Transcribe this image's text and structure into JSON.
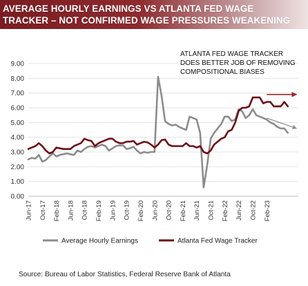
{
  "header": {
    "title_line1": "AVERAGE HOURLY EARNINGS VS ATLANTA FED WAGE",
    "title_line2": "TRACKER – NOT CONFIRMED WAGE PRESSURES WEAKENING"
  },
  "source_note": "Source:  Bureau of Labor Statistics,  Federal Reserve Bank of Atlanta",
  "colors": {
    "banner": "#7a1c21",
    "ahe_series": "#8c8c8c",
    "atl_series": "#6e0f16",
    "arrow_red": "#9b2b30",
    "arrow_gray": "#909090"
  },
  "chart_data": {
    "type": "line",
    "title": "",
    "xlabel": "",
    "ylabel": "",
    "ylim": [
      0,
      9
    ],
    "yticks": [
      "0.00",
      "1.00",
      "2.00",
      "3.00",
      "4.00",
      "5.00",
      "6.00",
      "7.00",
      "8.00",
      "9.00"
    ],
    "x_tick_labels": [
      "Jun-17",
      "Oct-17",
      "Feb-18",
      "Jun-18",
      "Oct-18",
      "Feb-19",
      "Jun-19",
      "Oct-19",
      "Feb-20",
      "Jun-20",
      "Oct-20",
      "Feb-21",
      "Jun-21",
      "Oct-21",
      "Feb-22",
      "Jun-22",
      "Oct-22",
      "Feb-23"
    ],
    "x_start": "2017-06",
    "x_end": "2023-06",
    "grid": true,
    "legend": "bottom",
    "annotation": [
      "ATLANTA FED WAGE TRACKER",
      "DOES BETTER JOB OF REMOVING",
      "COMPOSITIONAL BIASES"
    ],
    "series": [
      {
        "name": "Average Hourly Earnings",
        "color": "#8c8c8c",
        "values": [
          2.5,
          2.6,
          2.55,
          2.8,
          2.35,
          2.45,
          2.7,
          2.9,
          2.7,
          2.8,
          2.85,
          2.9,
          2.85,
          2.8,
          3.1,
          3.0,
          3.2,
          3.35,
          3.4,
          3.3,
          3.4,
          3.5,
          3.4,
          3.1,
          3.25,
          3.4,
          3.45,
          3.45,
          3.2,
          3.25,
          3.35,
          3.1,
          2.9,
          3.0,
          2.95,
          3.0,
          3.0,
          8.1,
          6.8,
          5.1,
          4.9,
          4.8,
          4.85,
          4.7,
          4.6,
          4.5,
          5.4,
          5.3,
          5.2,
          4.3,
          0.6,
          2.1,
          3.9,
          4.3,
          4.6,
          4.9,
          5.4,
          5.4,
          5.1,
          5.2,
          5.9,
          5.75,
          5.3,
          5.5,
          5.9,
          5.5,
          5.4,
          5.3,
          5.2,
          5.0,
          4.9,
          4.7,
          4.6,
          4.6,
          4.3,
          4.4,
          4.3,
          4.3
        ],
        "visible_through": "2023-04"
      },
      {
        "name": "Atlanta Fed Wage Tracker",
        "color": "#6e0f16",
        "values": [
          3.2,
          3.3,
          3.4,
          3.6,
          3.4,
          3.1,
          2.9,
          3.0,
          3.3,
          3.25,
          3.2,
          3.2,
          3.2,
          3.4,
          3.5,
          3.6,
          3.9,
          3.8,
          3.75,
          3.4,
          3.6,
          3.7,
          3.8,
          3.9,
          3.9,
          3.7,
          3.6,
          3.6,
          3.7,
          3.7,
          3.75,
          3.5,
          3.6,
          3.7,
          3.65,
          3.5,
          3.3,
          3.5,
          3.8,
          3.85,
          3.5,
          3.4,
          3.4,
          3.4,
          3.4,
          3.6,
          3.4,
          3.4,
          3.3,
          3.4,
          3.0,
          2.9,
          3.1,
          3.5,
          3.7,
          3.9,
          4.0,
          4.4,
          4.5,
          5.0,
          5.8,
          6.0,
          6.0,
          6.1,
          6.7,
          6.7,
          6.7,
          6.3,
          6.4,
          6.4,
          6.1,
          6.1,
          6.1,
          6.4,
          6.1,
          6.1,
          6.1,
          6.1
        ],
        "visible_through": "2023-04"
      }
    ]
  }
}
